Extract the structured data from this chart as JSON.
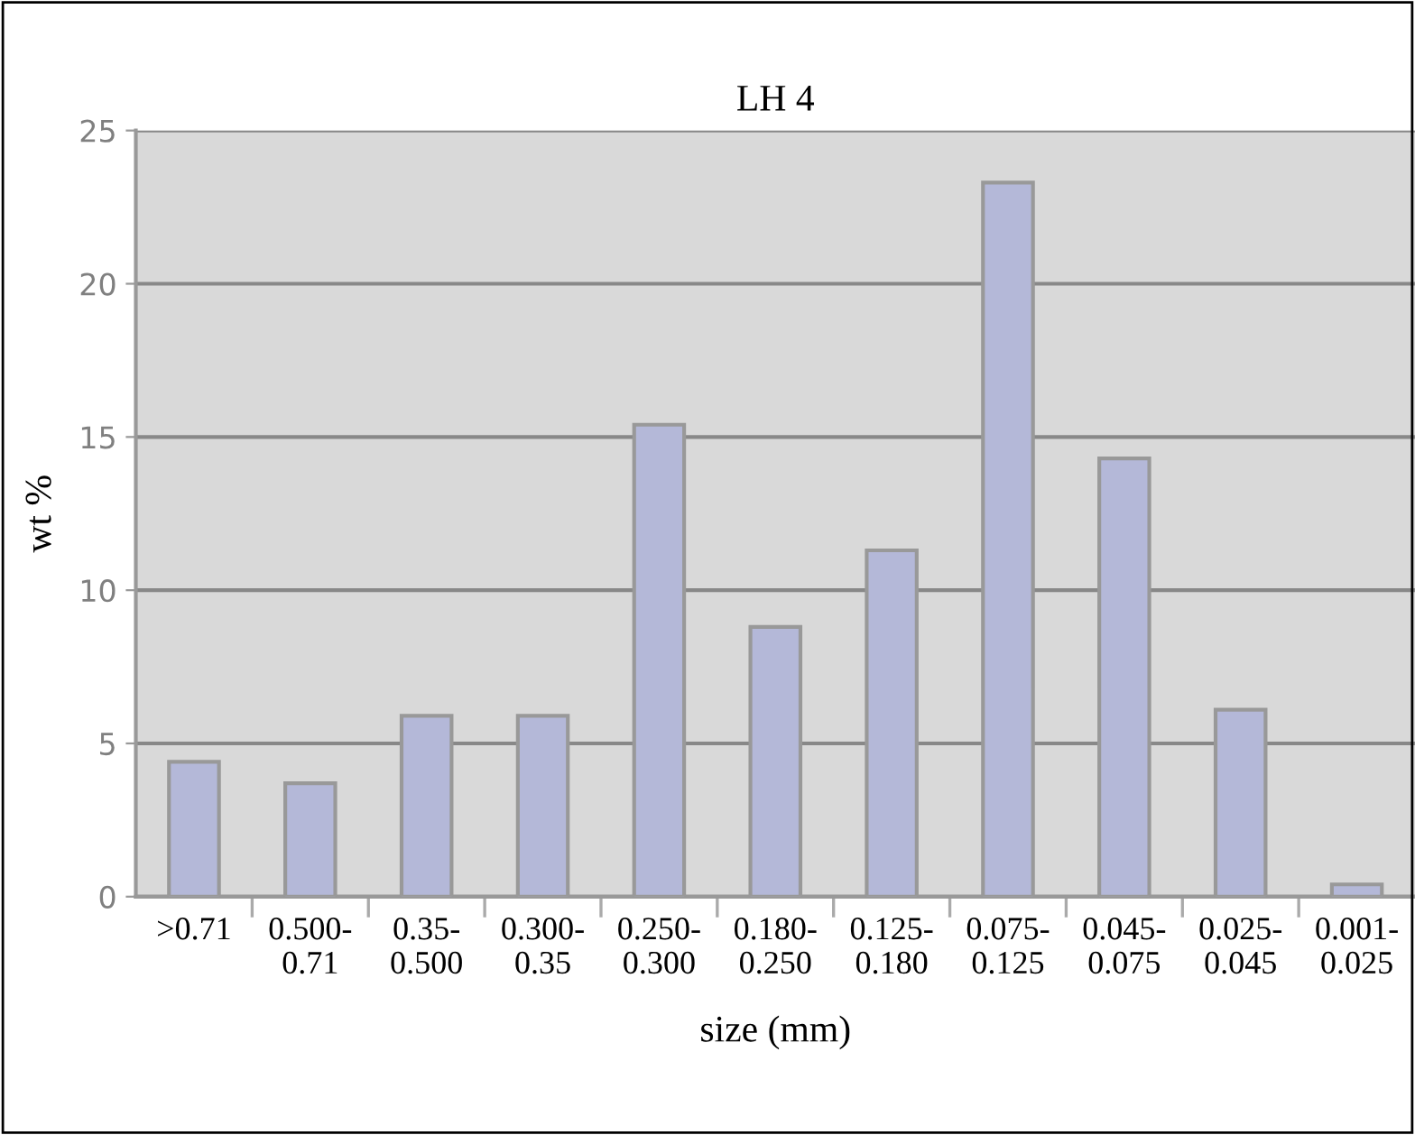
{
  "chart_data": {
    "type": "bar",
    "title": "LH 4",
    "xlabel": "size (mm)",
    "ylabel": "wt %",
    "categories": [
      ">0.71",
      "0.500-0.71",
      "0.35-0.500",
      "0.300-0.35",
      "0.250-0.300",
      "0.180-0.250",
      "0.125-0.180",
      "0.075-0.125",
      "0.045-0.075",
      "0.025-0.045",
      "0.001-0.025"
    ],
    "values": [
      4.4,
      3.7,
      5.9,
      5.9,
      15.4,
      8.8,
      11.3,
      23.3,
      14.3,
      6.1,
      0.4
    ],
    "color": "#b4b8d8",
    "ylim": [
      0,
      25
    ],
    "yticks": [
      0,
      5,
      10,
      15,
      20,
      25
    ],
    "grid": "y",
    "legend": false
  }
}
